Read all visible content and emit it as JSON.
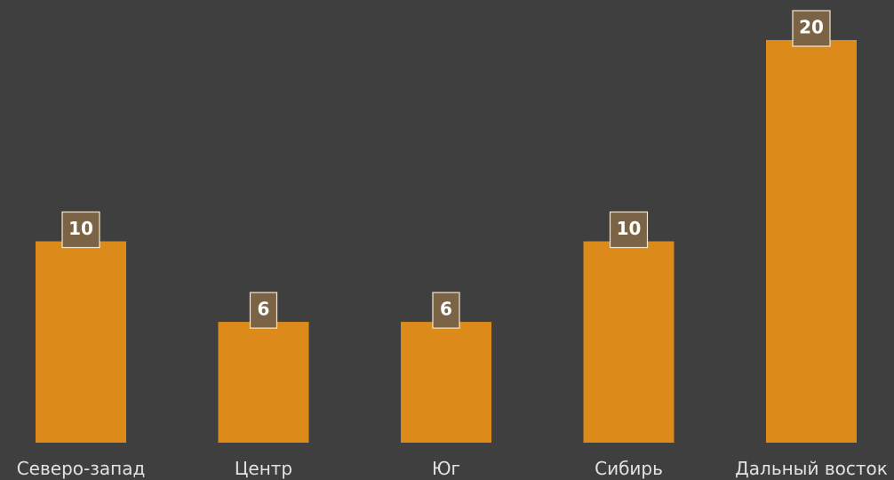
{
  "chart_data": {
    "type": "bar",
    "categories": [
      "Северо-запад",
      "Центр",
      "Юг",
      "Сибирь",
      "Дальный восток"
    ],
    "values": [
      10,
      6,
      6,
      10,
      20
    ],
    "ylim": [
      0,
      20
    ],
    "title": "",
    "xlabel": "",
    "ylabel": "",
    "grid": false,
    "legend": "none",
    "colors": {
      "background": "#3f3f3f",
      "bar": "#dc8a1a",
      "value_label_box": "#7b6445",
      "value_label_border": "#f4e7d2",
      "value_label_text": "#ffffff",
      "category_label_text": "#e2e2e2"
    }
  }
}
